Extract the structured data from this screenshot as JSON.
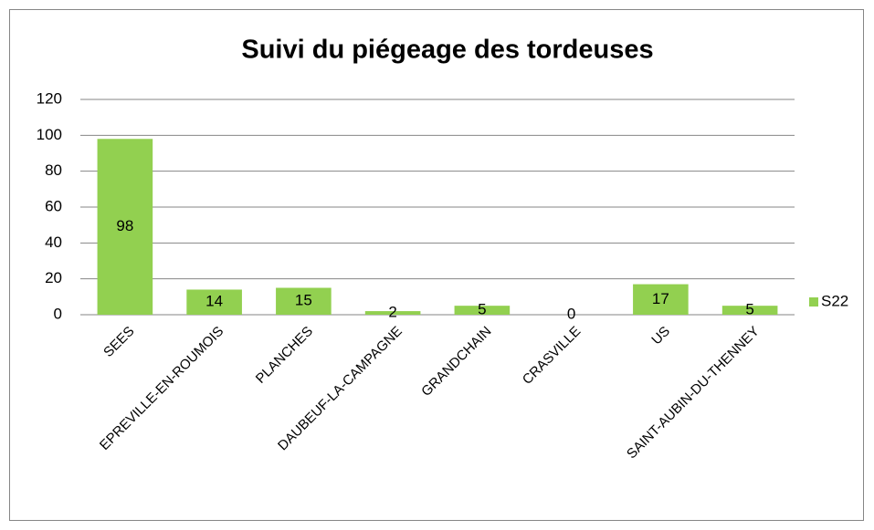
{
  "chart_data": {
    "type": "bar",
    "title": "Suivi du piégeage des tordeuses",
    "categories": [
      "SEES",
      "EPREVILLE-EN-ROUMOIS",
      "PLANCHES",
      "DAUBEUF-LA-CAMPAGNE",
      "GRANDCHAIN",
      "CRASVILLE",
      "US",
      "SAINT-AUBIN-DU-THENNEY"
    ],
    "series": [
      {
        "name": "S22",
        "color": "#92d050",
        "values": [
          98,
          14,
          15,
          2,
          5,
          0,
          17,
          5
        ]
      }
    ],
    "ylim": [
      0,
      120
    ],
    "yticks": [
      0,
      20,
      40,
      60,
      80,
      100,
      120
    ],
    "grid": true,
    "legend": "right"
  }
}
